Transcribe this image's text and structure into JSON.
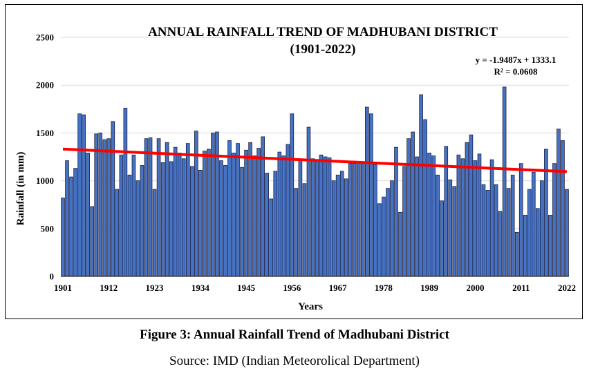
{
  "chart_data": {
    "type": "bar",
    "title_line1": "ANNUAL RAINFALL TREND OF MADHUBANI DISTRICT",
    "title_line2": "(1901-2022)",
    "xlabel": "Years",
    "ylabel": "Rainfall (in mm)",
    "ylim": [
      0,
      2500
    ],
    "yticks": [
      "0",
      "500",
      "1000",
      "1500",
      "2000",
      "2500"
    ],
    "xticks": [
      "1901",
      "1912",
      "1923",
      "1934",
      "1945",
      "1956",
      "1967",
      "1978",
      "1989",
      "2000",
      "2011",
      "2022"
    ],
    "grid": true,
    "bar_color": "#4472C4",
    "bar_edge_color": "#1F1F3F",
    "trend_color": "#FF0000",
    "trendline": {
      "slope": -1.9487,
      "intercept": 1333.1
    },
    "equation": "y = -1.9487x + 1333.1",
    "r_squared": "R² = 0.0608",
    "categories": [
      1901,
      1902,
      1903,
      1904,
      1905,
      1906,
      1907,
      1908,
      1909,
      1910,
      1911,
      1912,
      1913,
      1914,
      1915,
      1916,
      1917,
      1918,
      1919,
      1920,
      1921,
      1922,
      1923,
      1924,
      1925,
      1926,
      1927,
      1928,
      1929,
      1930,
      1931,
      1932,
      1933,
      1934,
      1935,
      1936,
      1937,
      1938,
      1939,
      1940,
      1941,
      1942,
      1943,
      1944,
      1945,
      1946,
      1947,
      1948,
      1949,
      1950,
      1951,
      1952,
      1953,
      1954,
      1955,
      1956,
      1957,
      1958,
      1959,
      1960,
      1961,
      1962,
      1963,
      1964,
      1965,
      1966,
      1967,
      1968,
      1969,
      1970,
      1971,
      1972,
      1973,
      1974,
      1975,
      1976,
      1977,
      1978,
      1979,
      1980,
      1981,
      1982,
      1983,
      1984,
      1985,
      1986,
      1987,
      1988,
      1989,
      1990,
      1991,
      1992,
      1993,
      1994,
      1995,
      1996,
      1997,
      1998,
      1999,
      2000,
      2001,
      2002,
      2003,
      2004,
      2005,
      2006,
      2007,
      2008,
      2009,
      2010,
      2011,
      2012,
      2013,
      2014,
      2015,
      2016,
      2017,
      2018,
      2019,
      2020,
      2021,
      2022
    ],
    "values": [
      820,
      1210,
      1040,
      1130,
      1700,
      1690,
      1290,
      730,
      1490,
      1500,
      1430,
      1440,
      1620,
      910,
      1270,
      1760,
      1060,
      1270,
      1000,
      1160,
      1440,
      1450,
      910,
      1440,
      1190,
      1400,
      1200,
      1350,
      1290,
      1230,
      1390,
      1150,
      1520,
      1110,
      1310,
      1330,
      1500,
      1510,
      1210,
      1160,
      1420,
      1290,
      1390,
      1140,
      1320,
      1400,
      1260,
      1340,
      1460,
      1080,
      810,
      1100,
      1300,
      1260,
      1380,
      1700,
      920,
      1230,
      970,
      1560,
      1230,
      1220,
      1270,
      1250,
      1240,
      1000,
      1060,
      1100,
      1020,
      1180,
      1180,
      1200,
      1200,
      1770,
      1700,
      1170,
      760,
      830,
      920,
      1000,
      1350,
      670,
      1150,
      1440,
      1510,
      1250,
      1900,
      1640,
      1290,
      1260,
      1060,
      790,
      1360,
      1010,
      940,
      1270,
      1230,
      1400,
      1480,
      1210,
      1280,
      960,
      900,
      1220,
      960,
      680,
      1980,
      920,
      1060,
      460,
      1180,
      640,
      910,
      1090,
      710,
      1000,
      1330,
      640,
      1180,
      1540,
      1420,
      910
    ]
  },
  "caption": "Figure 3: Annual Rainfall Trend of Madhubani District",
  "source": "Source: IMD (Indian Meteorolical Department)"
}
